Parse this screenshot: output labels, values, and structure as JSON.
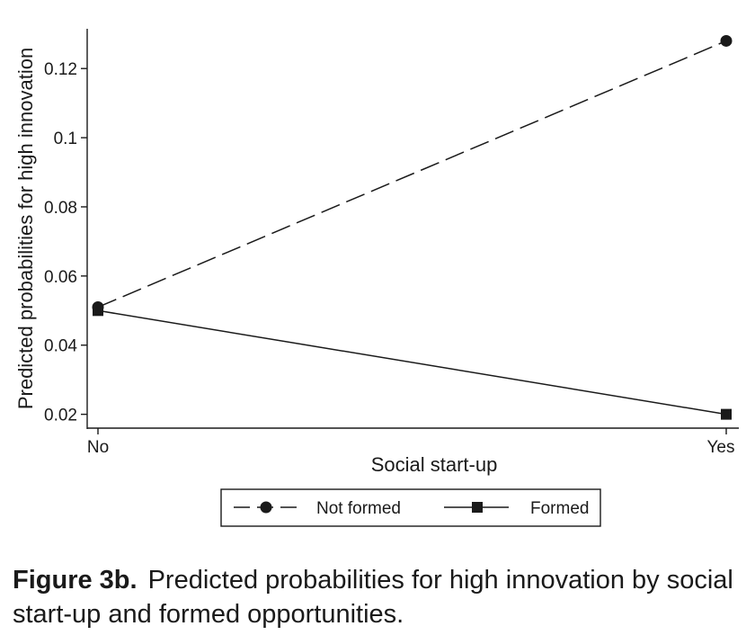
{
  "chart_data": {
    "type": "line",
    "categories": [
      "No",
      "Yes"
    ],
    "series": [
      {
        "name": "Not formed",
        "values": [
          0.051,
          0.128
        ],
        "line_style": "dashed",
        "marker": "circle",
        "color": "#1a1a1a"
      },
      {
        "name": "Formed",
        "values": [
          0.05,
          0.02
        ],
        "line_style": "solid",
        "marker": "square",
        "color": "#1a1a1a"
      }
    ],
    "xlabel": "Social start-up",
    "ylabel": "Predicted probabilities for high innovation",
    "yticks": [
      0.02,
      0.04,
      0.06,
      0.08,
      0.1,
      0.12
    ],
    "ytick_labels": [
      "0.02",
      "0.04",
      "0.06",
      "0.08",
      "0.1",
      "0.12"
    ],
    "ylim": [
      0.016,
      0.1315
    ],
    "grid": false,
    "legend_position": "bottom"
  },
  "caption": {
    "label": "Figure 3b.",
    "text": "Predicted probabilities for high innovation by social start-up and formed opportunities."
  }
}
